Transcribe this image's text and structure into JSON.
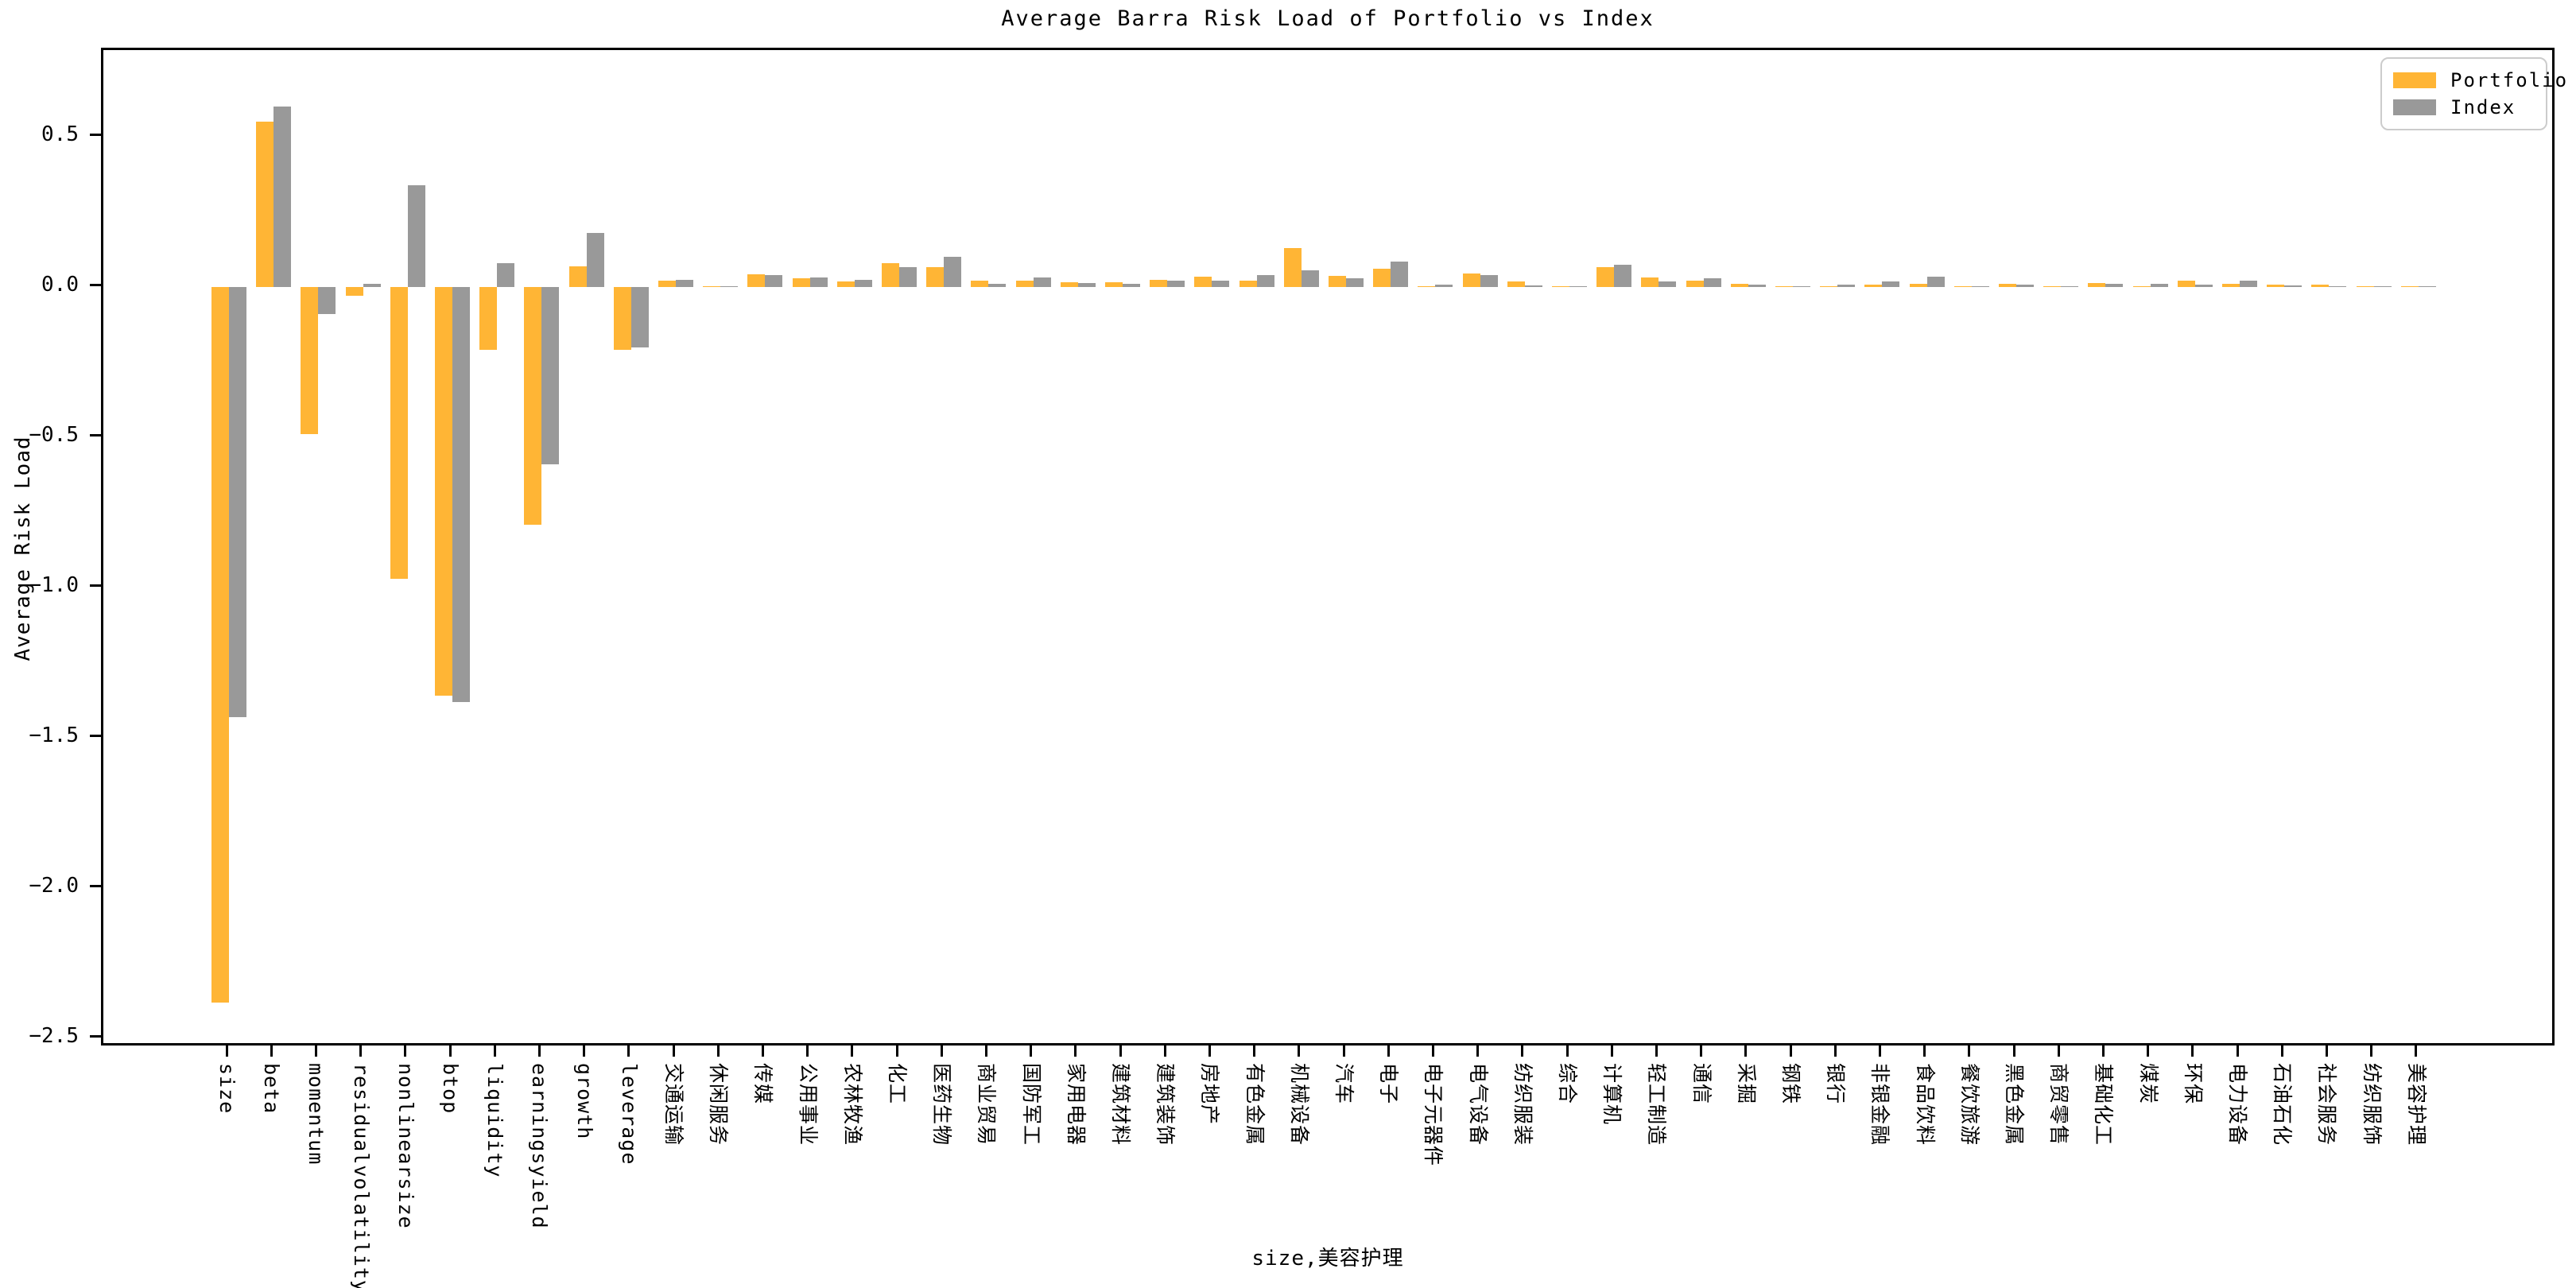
{
  "title": "Average Barra Risk Load of Portfolio vs Index",
  "chart_data": {
    "type": "bar",
    "title": "Average Barra Risk Load of Portfolio vs Index",
    "xlabel": "size,美容护理",
    "ylabel": "Average Risk Load",
    "ylim": [
      -2.53,
      0.75
    ],
    "yticks": [
      0.5,
      0.0,
      -0.5,
      -1.0,
      -1.5,
      -2.0,
      -2.5
    ],
    "grid": false,
    "legend_position": "upper right",
    "categories": [
      "size",
      "beta",
      "momentum",
      "residualvolatility",
      "nonlinearsize",
      "btop",
      "liquidity",
      "earningsyield",
      "growth",
      "leverage",
      "交通运输",
      "休闲服务",
      "传媒",
      "公用事业",
      "农林牧渔",
      "化工",
      "医药生物",
      "商业贸易",
      "国防军工",
      "家用电器",
      "建筑材料",
      "建筑装饰",
      "房地产",
      "有色金属",
      "机械设备",
      "汽车",
      "电子",
      "电子元器件",
      "电气设备",
      "纺织服装",
      "综合",
      "计算机",
      "轻工制造",
      "通信",
      "采掘",
      "钢铁",
      "银行",
      "非银金融",
      "食品饮料",
      "餐饮旅游",
      "黑色金属",
      "商贸零售",
      "基础化工",
      "煤炭",
      "环保",
      "电力设备",
      "石油石化",
      "社会服务",
      "纺织服饰",
      "美容护理"
    ],
    "series": [
      {
        "name": "Portfolio",
        "color": "#FFB535",
        "values": [
          -2.38,
          0.55,
          -0.49,
          -0.03,
          -0.97,
          -1.36,
          -0.21,
          -0.79,
          0.07,
          -0.21,
          0.02,
          0.004,
          0.042,
          0.03,
          0.018,
          0.08,
          0.065,
          0.022,
          0.02,
          0.015,
          0.015,
          0.025,
          0.035,
          0.02,
          0.13,
          0.037,
          0.06,
          0.004,
          0.045,
          0.018,
          0.004,
          0.065,
          0.033,
          0.02,
          0.012,
          0.004,
          0.004,
          0.007,
          0.012,
          0.001,
          0.01,
          0.004,
          0.013,
          0.004,
          0.022,
          0.012,
          0.008,
          0.008,
          0.004,
          0.004
        ]
      },
      {
        "name": "Index",
        "color": "#999999",
        "values": [
          -1.43,
          0.6,
          -0.09,
          0.01,
          0.34,
          -1.38,
          0.08,
          -0.59,
          0.18,
          -0.2,
          0.025,
          0.002,
          0.04,
          0.033,
          0.025,
          0.065,
          0.1,
          0.012,
          0.032,
          0.013,
          0.012,
          0.02,
          0.02,
          0.04,
          0.055,
          0.03,
          0.085,
          0.008,
          0.04,
          0.005,
          0.002,
          0.075,
          0.018,
          0.028,
          0.008,
          0.004,
          0.007,
          0.018,
          0.035,
          0.001,
          0.008,
          0.002,
          0.012,
          0.01,
          0.008,
          0.02,
          0.005,
          0.003,
          0.003,
          0.002
        ]
      }
    ]
  }
}
